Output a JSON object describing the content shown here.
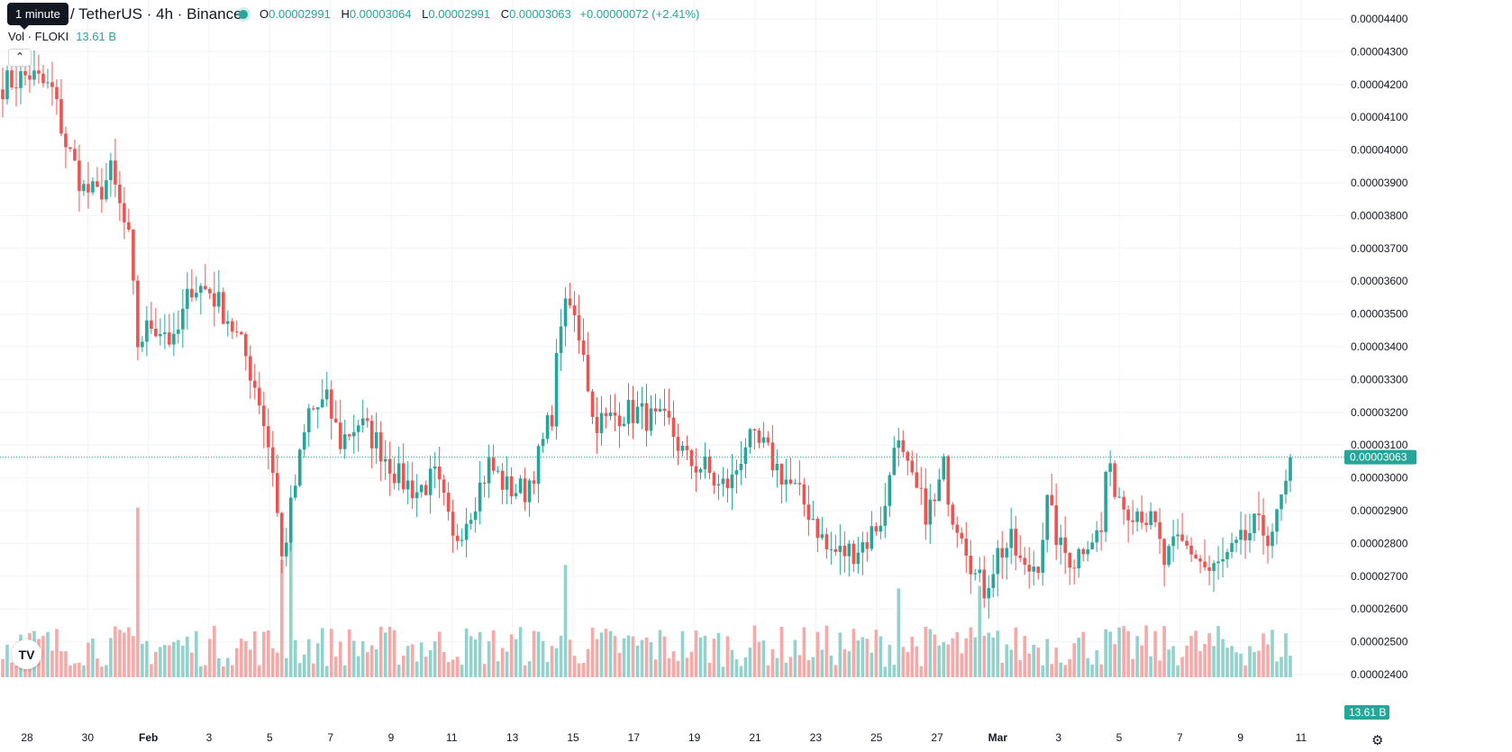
{
  "header": {
    "tooltip": "1 minute",
    "symbol": "/ TetherUS · 4h · Binance",
    "ohlc": {
      "o_label": "O",
      "o": "0.00002991",
      "h_label": "H",
      "h": "0.00003064",
      "l_label": "L",
      "l": "0.00002991",
      "c_label": "C",
      "c": "0.00003063",
      "change": "+0.00000072 (+2.41%)"
    },
    "volume": {
      "label": "Vol · FLOKI",
      "value": "13.61 B"
    },
    "collapse_icon": "chevron-up-icon"
  },
  "footer": {
    "logo": "TV",
    "settings_icon": "gear-icon"
  },
  "colors": {
    "up": "#26a69a",
    "down": "#ef5350",
    "vol_up": "#92d2cc",
    "vol_down": "#f7a9a7",
    "grid": "#f0f3fa",
    "text": "#131722"
  },
  "chart_data": {
    "type": "candlestick",
    "price_axis": {
      "min": 2.4e-05,
      "max": 4.4e-05,
      "ticks": [
        "0.00004400",
        "0.00004300",
        "0.00004200",
        "0.00004100",
        "0.00004000",
        "0.00003900",
        "0.00003800",
        "0.00003700",
        "0.00003600",
        "0.00003500",
        "0.00003400",
        "0.00003300",
        "0.00003200",
        "0.00003100",
        "0.00003000",
        "0.00002900",
        "0.00002800",
        "0.00002700",
        "0.00002600",
        "0.00002500",
        "0.00002400"
      ],
      "tick_values": [
        4.4e-05,
        4.3e-05,
        4.2e-05,
        4.1e-05,
        4e-05,
        3.9e-05,
        3.8e-05,
        3.7e-05,
        3.6e-05,
        3.5e-05,
        3.4e-05,
        3.3e-05,
        3.2e-05,
        3.1e-05,
        3e-05,
        2.9e-05,
        2.8e-05,
        2.7e-05,
        2.6e-05,
        2.5e-05,
        2.4e-05
      ]
    },
    "time_axis": {
      "labels": [
        "28",
        "30",
        "Feb",
        "3",
        "5",
        "7",
        "9",
        "11",
        "13",
        "15",
        "17",
        "19",
        "21",
        "23",
        "25",
        "27",
        "Mar",
        "3",
        "5",
        "7",
        "9",
        "11"
      ]
    },
    "last_price": {
      "label": "0.00003063",
      "value": 3.063e-05
    },
    "last_volume": {
      "label": "13.61 B"
    },
    "anchors": [
      {
        "i": 0,
        "c": 4.2e-05
      },
      {
        "i": 6,
        "c": 4.23e-05
      },
      {
        "i": 11,
        "c": 4.18e-05
      },
      {
        "i": 14,
        "c": 4.02e-05
      },
      {
        "i": 18,
        "c": 3.88e-05
      },
      {
        "i": 21,
        "c": 3.86e-05
      },
      {
        "i": 24,
        "c": 3.93e-05
      },
      {
        "i": 28,
        "c": 3.72e-05
      },
      {
        "i": 30,
        "c": 3.41e-05
      },
      {
        "i": 33,
        "c": 3.47e-05
      },
      {
        "i": 36,
        "c": 3.45e-05
      },
      {
        "i": 38,
        "c": 3.4e-05
      },
      {
        "i": 42,
        "c": 3.59e-05
      },
      {
        "i": 46,
        "c": 3.57e-05
      },
      {
        "i": 50,
        "c": 3.49e-05
      },
      {
        "i": 54,
        "c": 3.37e-05
      },
      {
        "i": 57,
        "c": 3.24e-05
      },
      {
        "i": 60,
        "c": 3.03e-05
      },
      {
        "i": 62,
        "c": 2.75e-05
      },
      {
        "i": 65,
        "c": 2.98e-05
      },
      {
        "i": 68,
        "c": 3.2e-05
      },
      {
        "i": 72,
        "c": 3.23e-05
      },
      {
        "i": 75,
        "c": 3.11e-05
      },
      {
        "i": 79,
        "c": 3.17e-05
      },
      {
        "i": 83,
        "c": 3.11e-05
      },
      {
        "i": 88,
        "c": 3e-05
      },
      {
        "i": 92,
        "c": 2.96e-05
      },
      {
        "i": 96,
        "c": 3e-05
      },
      {
        "i": 98,
        "c": 2.92e-05
      },
      {
        "i": 100,
        "c": 2.8e-05
      },
      {
        "i": 104,
        "c": 2.91e-05
      },
      {
        "i": 108,
        "c": 3.04e-05
      },
      {
        "i": 112,
        "c": 2.97e-05
      },
      {
        "i": 116,
        "c": 2.96e-05
      },
      {
        "i": 119,
        "c": 3.06e-05
      },
      {
        "i": 122,
        "c": 3.2e-05
      },
      {
        "i": 124,
        "c": 3.49e-05
      },
      {
        "i": 126,
        "c": 3.52e-05
      },
      {
        "i": 129,
        "c": 3.4e-05
      },
      {
        "i": 131,
        "c": 3.18e-05
      },
      {
        "i": 134,
        "c": 3.17e-05
      },
      {
        "i": 137,
        "c": 3.2e-05
      },
      {
        "i": 141,
        "c": 3.2e-05
      },
      {
        "i": 145,
        "c": 3.17e-05
      },
      {
        "i": 148,
        "c": 3.16e-05
      },
      {
        "i": 152,
        "c": 3.05e-05
      },
      {
        "i": 156,
        "c": 3.03e-05
      },
      {
        "i": 159,
        "c": 2.97e-05
      },
      {
        "i": 162,
        "c": 2.99e-05
      },
      {
        "i": 165,
        "c": 3.11e-05
      },
      {
        "i": 169,
        "c": 3.09e-05
      },
      {
        "i": 172,
        "c": 3.03e-05
      },
      {
        "i": 176,
        "c": 2.96e-05
      },
      {
        "i": 180,
        "c": 2.88e-05
      },
      {
        "i": 183,
        "c": 2.78e-05
      },
      {
        "i": 186,
        "c": 2.77e-05
      },
      {
        "i": 189,
        "c": 2.78e-05
      },
      {
        "i": 192,
        "c": 2.81e-05
      },
      {
        "i": 196,
        "c": 2.9e-05
      },
      {
        "i": 198,
        "c": 3.13e-05
      },
      {
        "i": 200,
        "c": 3.05e-05
      },
      {
        "i": 202,
        "c": 2.98e-05
      },
      {
        "i": 205,
        "c": 2.9e-05
      },
      {
        "i": 207,
        "c": 2.92e-05
      },
      {
        "i": 209,
        "c": 3.03e-05
      },
      {
        "i": 211,
        "c": 2.89e-05
      },
      {
        "i": 213,
        "c": 2.85e-05
      },
      {
        "i": 216,
        "c": 2.7e-05
      },
      {
        "i": 218,
        "c": 2.66e-05
      },
      {
        "i": 221,
        "c": 2.77e-05
      },
      {
        "i": 224,
        "c": 2.8e-05
      },
      {
        "i": 227,
        "c": 2.71e-05
      },
      {
        "i": 230,
        "c": 2.75e-05
      },
      {
        "i": 232,
        "c": 2.92e-05
      },
      {
        "i": 235,
        "c": 2.78e-05
      },
      {
        "i": 238,
        "c": 2.75e-05
      },
      {
        "i": 241,
        "c": 2.82e-05
      },
      {
        "i": 244,
        "c": 2.83e-05
      },
      {
        "i": 245,
        "c": 3.02e-05
      },
      {
        "i": 247,
        "c": 2.98e-05
      },
      {
        "i": 249,
        "c": 2.92e-05
      },
      {
        "i": 253,
        "c": 2.9e-05
      },
      {
        "i": 256,
        "c": 2.84e-05
      },
      {
        "i": 258,
        "c": 2.74e-05
      },
      {
        "i": 261,
        "c": 2.8e-05
      },
      {
        "i": 264,
        "c": 2.78e-05
      },
      {
        "i": 268,
        "c": 2.71e-05
      },
      {
        "i": 271,
        "c": 2.74e-05
      },
      {
        "i": 274,
        "c": 2.78e-05
      },
      {
        "i": 278,
        "c": 2.85e-05
      },
      {
        "i": 281,
        "c": 2.83e-05
      },
      {
        "i": 283,
        "c": 2.87e-05
      },
      {
        "i": 285,
        "c": 2.991e-05
      },
      {
        "i": 286,
        "c": 3.063e-05
      }
    ],
    "volume_spikes": [
      {
        "i": 30,
        "v": 6.5
      },
      {
        "i": 62,
        "v": 4.5
      },
      {
        "i": 64,
        "v": 5.2
      },
      {
        "i": 125,
        "v": 4.3
      },
      {
        "i": 199,
        "v": 3.4
      },
      {
        "i": 217,
        "v": 3.5
      }
    ]
  }
}
